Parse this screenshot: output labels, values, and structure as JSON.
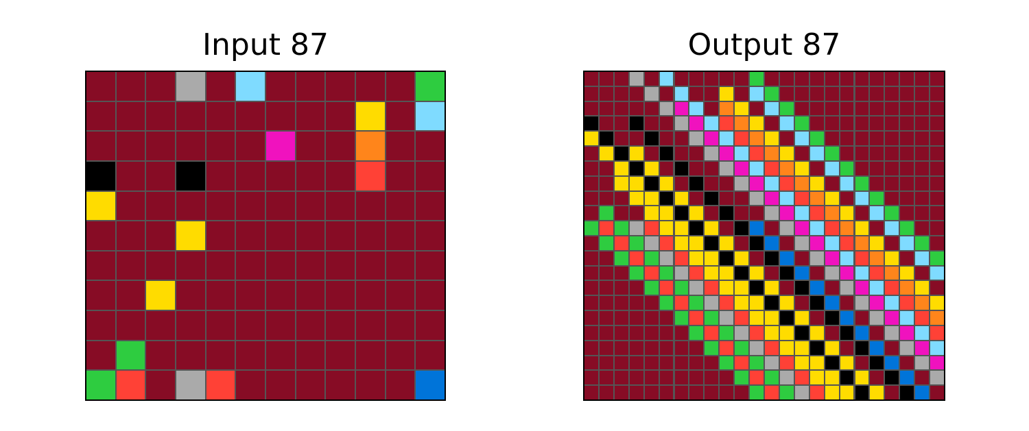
{
  "palette": {
    "0": "#000000",
    "1": "#0074d9",
    "2": "#ff4136",
    "3": "#2ecc40",
    "4": "#ffdc00",
    "5": "#aaaaaa",
    "6": "#f012be",
    "7": "#ff851b",
    "8": "#7fdbff",
    "9": "#870c25"
  },
  "input": {
    "title": "Input 87",
    "rows": 11,
    "cols": 12,
    "grid": [
      [
        9,
        9,
        9,
        5,
        9,
        8,
        9,
        9,
        9,
        9,
        9,
        3
      ],
      [
        9,
        9,
        9,
        9,
        9,
        9,
        9,
        9,
        9,
        4,
        9,
        8
      ],
      [
        9,
        9,
        9,
        9,
        9,
        9,
        6,
        9,
        9,
        7,
        9,
        9
      ],
      [
        0,
        9,
        9,
        0,
        9,
        9,
        9,
        9,
        9,
        2,
        9,
        9
      ],
      [
        4,
        9,
        9,
        9,
        9,
        9,
        9,
        9,
        9,
        9,
        9,
        9
      ],
      [
        9,
        9,
        9,
        4,
        9,
        9,
        9,
        9,
        9,
        9,
        9,
        9
      ],
      [
        9,
        9,
        9,
        9,
        9,
        9,
        9,
        9,
        9,
        9,
        9,
        9
      ],
      [
        9,
        9,
        4,
        9,
        9,
        9,
        9,
        9,
        9,
        9,
        9,
        9
      ],
      [
        9,
        9,
        9,
        9,
        9,
        9,
        9,
        9,
        9,
        9,
        9,
        9
      ],
      [
        9,
        3,
        9,
        9,
        9,
        9,
        9,
        9,
        9,
        9,
        9,
        9
      ],
      [
        3,
        2,
        9,
        5,
        2,
        9,
        9,
        9,
        9,
        9,
        9,
        1
      ]
    ]
  },
  "output": {
    "title": "Output 87",
    "rows": 22,
    "cols": 24,
    "grid": [
      [
        9,
        9,
        9,
        5,
        9,
        8,
        9,
        9,
        9,
        9,
        9,
        3,
        9,
        9,
        9,
        9,
        9,
        9,
        9,
        9,
        9,
        9,
        9,
        9
      ],
      [
        9,
        9,
        9,
        9,
        5,
        9,
        8,
        9,
        9,
        4,
        9,
        8,
        3,
        9,
        9,
        9,
        9,
        9,
        9,
        9,
        9,
        9,
        9,
        9
      ],
      [
        9,
        9,
        9,
        9,
        9,
        5,
        6,
        8,
        9,
        7,
        4,
        9,
        8,
        3,
        9,
        9,
        9,
        9,
        9,
        9,
        9,
        9,
        9,
        9
      ],
      [
        0,
        9,
        9,
        0,
        9,
        9,
        5,
        6,
        8,
        2,
        7,
        4,
        9,
        8,
        3,
        9,
        9,
        9,
        9,
        9,
        9,
        9,
        9,
        9
      ],
      [
        4,
        0,
        9,
        9,
        0,
        9,
        9,
        5,
        6,
        8,
        2,
        7,
        4,
        9,
        8,
        3,
        9,
        9,
        9,
        9,
        9,
        9,
        9,
        9
      ],
      [
        9,
        4,
        0,
        4,
        9,
        0,
        9,
        9,
        5,
        6,
        8,
        2,
        7,
        4,
        9,
        8,
        3,
        9,
        9,
        9,
        9,
        9,
        9,
        9
      ],
      [
        9,
        9,
        4,
        0,
        4,
        9,
        0,
        9,
        9,
        5,
        6,
        8,
        2,
        7,
        4,
        9,
        8,
        3,
        9,
        9,
        9,
        9,
        9,
        9
      ],
      [
        9,
        9,
        4,
        4,
        0,
        4,
        9,
        0,
        9,
        9,
        5,
        6,
        8,
        2,
        7,
        4,
        9,
        8,
        3,
        9,
        9,
        9,
        9,
        9
      ],
      [
        9,
        9,
        9,
        4,
        4,
        0,
        4,
        9,
        0,
        9,
        9,
        5,
        6,
        8,
        2,
        7,
        4,
        9,
        8,
        3,
        9,
        9,
        9,
        9
      ],
      [
        9,
        3,
        9,
        9,
        4,
        4,
        0,
        4,
        9,
        0,
        9,
        9,
        5,
        6,
        8,
        2,
        7,
        4,
        9,
        8,
        3,
        9,
        9,
        9
      ],
      [
        3,
        2,
        3,
        5,
        2,
        4,
        4,
        0,
        4,
        9,
        0,
        1,
        9,
        5,
        6,
        8,
        2,
        7,
        4,
        9,
        8,
        3,
        9,
        9
      ],
      [
        9,
        3,
        2,
        3,
        5,
        2,
        4,
        4,
        0,
        4,
        9,
        0,
        1,
        9,
        5,
        6,
        8,
        2,
        7,
        4,
        9,
        8,
        3,
        9
      ],
      [
        9,
        9,
        3,
        2,
        3,
        5,
        2,
        4,
        4,
        0,
        4,
        9,
        0,
        1,
        9,
        5,
        6,
        8,
        2,
        7,
        4,
        9,
        8,
        3
      ],
      [
        9,
        9,
        9,
        3,
        2,
        3,
        5,
        2,
        4,
        4,
        0,
        4,
        9,
        0,
        1,
        9,
        5,
        6,
        8,
        2,
        7,
        4,
        9,
        8
      ],
      [
        9,
        9,
        9,
        9,
        3,
        2,
        3,
        5,
        2,
        4,
        4,
        0,
        4,
        9,
        0,
        1,
        9,
        5,
        6,
        8,
        2,
        7,
        4,
        9
      ],
      [
        9,
        9,
        9,
        9,
        9,
        3,
        2,
        3,
        5,
        2,
        4,
        4,
        0,
        4,
        9,
        0,
        1,
        9,
        5,
        6,
        8,
        2,
        7,
        4
      ],
      [
        9,
        9,
        9,
        9,
        9,
        9,
        3,
        2,
        3,
        5,
        2,
        4,
        4,
        0,
        4,
        9,
        0,
        1,
        9,
        5,
        6,
        8,
        2,
        7
      ],
      [
        9,
        9,
        9,
        9,
        9,
        9,
        9,
        3,
        2,
        3,
        5,
        2,
        4,
        4,
        0,
        4,
        9,
        0,
        1,
        9,
        5,
        6,
        8,
        2
      ],
      [
        9,
        9,
        9,
        9,
        9,
        9,
        9,
        9,
        3,
        2,
        3,
        5,
        2,
        4,
        4,
        0,
        4,
        9,
        0,
        1,
        9,
        5,
        6,
        8
      ],
      [
        9,
        9,
        9,
        9,
        9,
        9,
        9,
        9,
        9,
        3,
        2,
        3,
        5,
        2,
        4,
        4,
        0,
        4,
        9,
        0,
        1,
        9,
        5,
        6
      ],
      [
        9,
        9,
        9,
        9,
        9,
        9,
        9,
        9,
        9,
        9,
        3,
        2,
        3,
        5,
        2,
        4,
        4,
        0,
        4,
        9,
        0,
        1,
        9,
        5
      ],
      [
        9,
        9,
        9,
        9,
        9,
        9,
        9,
        9,
        9,
        9,
        9,
        3,
        2,
        3,
        5,
        2,
        4,
        4,
        0,
        4,
        9,
        0,
        1,
        9
      ]
    ]
  }
}
